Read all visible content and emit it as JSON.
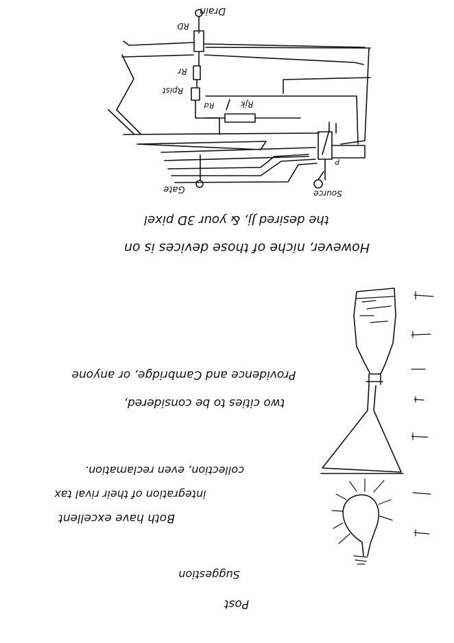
{
  "circuit": {
    "labels": {
      "drain": "Drain",
      "rd": "RD",
      "rs_top": "Rr",
      "rpist": "Rpist",
      "rd_small": "Rd",
      "rjk": "Rjk",
      "gate": "Gate",
      "source": "Source",
      "p": "P"
    }
  },
  "notes": {
    "line1": "However, niche of those devices is on",
    "line2": "the desired Jj, & your 3D pixel",
    "line3": "two cities to be considered,",
    "line4": "Providence and Cambridge, or anyone",
    "line5": "Both have excellent",
    "line6": "integration of their rival tax",
    "line7": "collection, even reclamation.",
    "line8": "Suggestion",
    "line9": "Post"
  },
  "icons": {
    "bottle": "bottle-icon",
    "flask": "flask-icon",
    "bulb": "light-bulb-icon"
  }
}
